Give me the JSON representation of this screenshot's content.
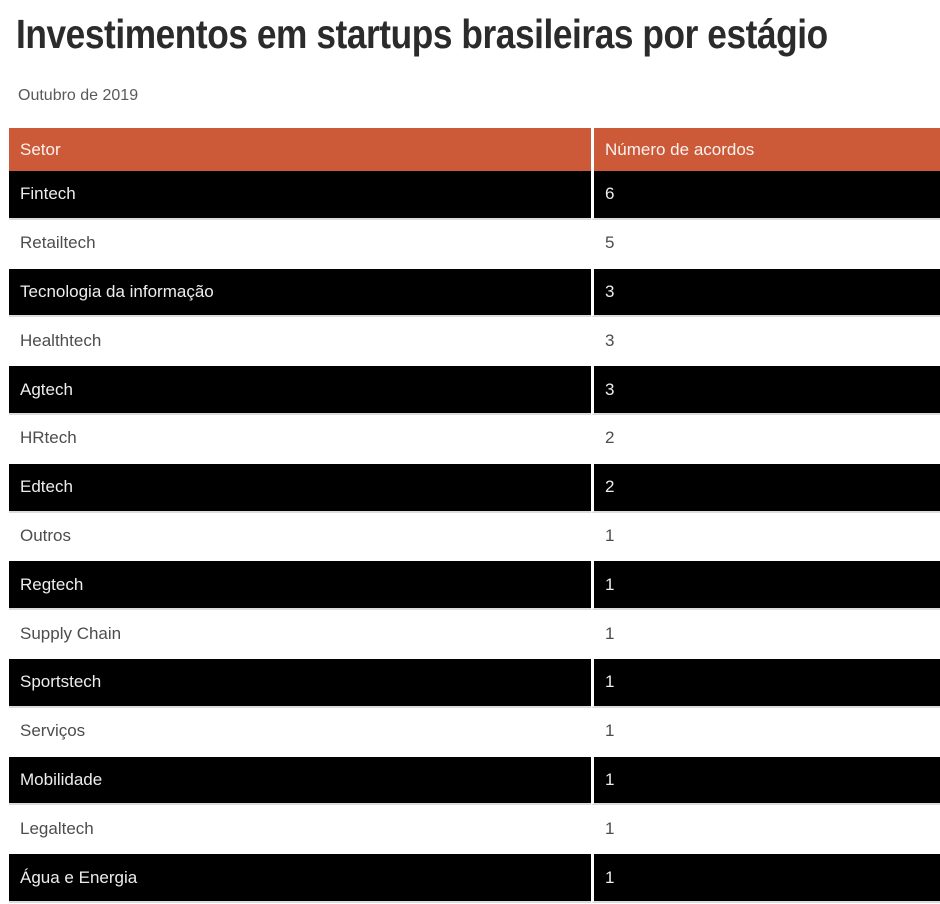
{
  "chart_data": {
    "type": "table",
    "title": "Investimentos em startups brasileiras por estágio",
    "subtitle": "Outubro de 2019",
    "columns": [
      "Setor",
      "Número de acordos"
    ],
    "rows": [
      {
        "setor": "Fintech",
        "acordos": "6"
      },
      {
        "setor": "Retailtech",
        "acordos": "5"
      },
      {
        "setor": "Tecnologia da informação",
        "acordos": "3"
      },
      {
        "setor": "Healthtech",
        "acordos": "3"
      },
      {
        "setor": "Agtech",
        "acordos": "3"
      },
      {
        "setor": "HRtech",
        "acordos": "2"
      },
      {
        "setor": "Edtech",
        "acordos": "2"
      },
      {
        "setor": "Outros",
        "acordos": "1"
      },
      {
        "setor": "Regtech",
        "acordos": "1"
      },
      {
        "setor": "Supply Chain",
        "acordos": "1"
      },
      {
        "setor": "Sportstech",
        "acordos": "1"
      },
      {
        "setor": "Serviços",
        "acordos": "1"
      },
      {
        "setor": "Mobilidade",
        "acordos": "1"
      },
      {
        "setor": "Legaltech",
        "acordos": "1"
      },
      {
        "setor": "Água e Energia",
        "acordos": "1"
      }
    ],
    "layout": {
      "row_striping": "alternating dark/light starting dark",
      "legend": "none",
      "grid": "off"
    }
  },
  "colors": {
    "header_bg": "#cc5a39",
    "header_text": "#faf2ee",
    "dark_row_bg": "#000000",
    "dark_row_text": "#ededed",
    "light_row_text": "#4d4d4d",
    "row_divider": "#dcdcdc",
    "title_text": "#2b2b2b",
    "subtitle_text": "#595959"
  }
}
